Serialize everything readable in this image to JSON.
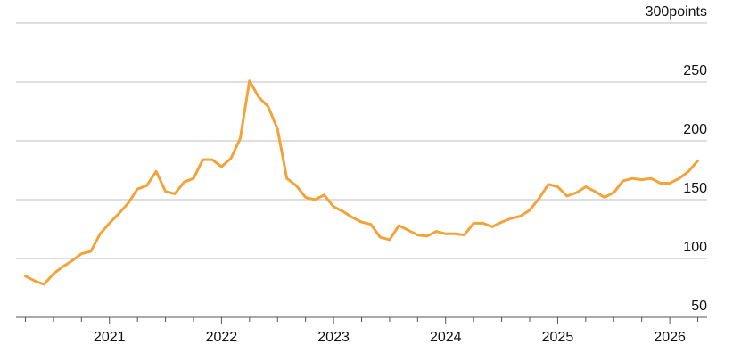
{
  "chart_data": {
    "type": "line",
    "title": "",
    "xlabel": "",
    "ylabel": "",
    "y_unit_suffix": "points",
    "ylim": [
      50,
      300
    ],
    "yticks": [
      50,
      100,
      150,
      200,
      250,
      300
    ],
    "xtick_labels": [
      "2021",
      "2022",
      "2023",
      "2024",
      "2025",
      "2026"
    ],
    "xlim": [
      "2020-03",
      "2026-05"
    ],
    "grid": "horizontal",
    "line_color": "#F2A33A",
    "series": [
      {
        "x": [
          "2020-04",
          "2020-05",
          "2020-06",
          "2020-07",
          "2020-08",
          "2020-09",
          "2020-10",
          "2020-11",
          "2020-12",
          "2021-01",
          "2021-02",
          "2021-03",
          "2021-04",
          "2021-05",
          "2021-06",
          "2021-07",
          "2021-08",
          "2021-09",
          "2021-10",
          "2021-11",
          "2021-12",
          "2022-01",
          "2022-02",
          "2022-03",
          "2022-04",
          "2022-05",
          "2022-06",
          "2022-07",
          "2022-08",
          "2022-09",
          "2022-10",
          "2022-11",
          "2022-12",
          "2023-01",
          "2023-02",
          "2023-03",
          "2023-04",
          "2023-05",
          "2023-06",
          "2023-07",
          "2023-08",
          "2023-09",
          "2023-10",
          "2023-11",
          "2023-12",
          "2024-01",
          "2024-02",
          "2024-03",
          "2024-04",
          "2024-05",
          "2024-06",
          "2024-07",
          "2024-08",
          "2024-09",
          "2024-10",
          "2024-11",
          "2024-12",
          "2025-01",
          "2025-02",
          "2025-03",
          "2025-04",
          "2025-05",
          "2025-06",
          "2025-07",
          "2025-08",
          "2025-09",
          "2025-10",
          "2025-11",
          "2025-12",
          "2026-01",
          "2026-02",
          "2026-03",
          "2026-04"
        ],
        "values": [
          85,
          81,
          78,
          87,
          93,
          98,
          104,
          106,
          121,
          130,
          138,
          147,
          159,
          162,
          174,
          157,
          155,
          165,
          168,
          184,
          184,
          178,
          185,
          202,
          251,
          237,
          229,
          210,
          168,
          162,
          152,
          150,
          154,
          144,
          140,
          135,
          131,
          129,
          118,
          116,
          128,
          124,
          120,
          119,
          123,
          121,
          121,
          120,
          130,
          130,
          127,
          131,
          134,
          136,
          141,
          151,
          163,
          161,
          153,
          156,
          161,
          157,
          152,
          156,
          166,
          168,
          167,
          168,
          164,
          164,
          168,
          174,
          183
        ]
      }
    ]
  }
}
